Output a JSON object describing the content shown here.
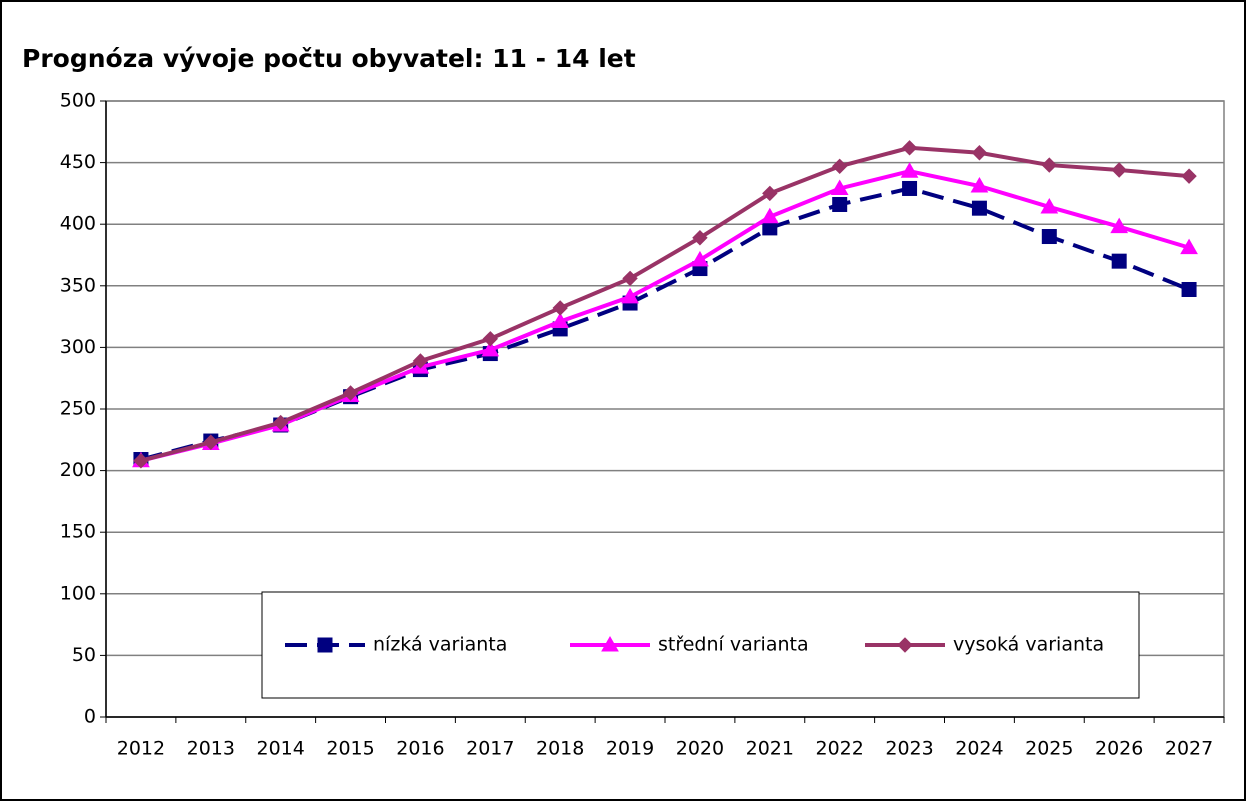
{
  "chart_data": {
    "type": "line",
    "title": "Prognóza vývoje počtu obyvatel: 11 - 14 let",
    "categories": [
      "2012",
      "2013",
      "2014",
      "2015",
      "2016",
      "2017",
      "2018",
      "2019",
      "2020",
      "2021",
      "2022",
      "2023",
      "2024",
      "2025",
      "2026",
      "2027"
    ],
    "series": [
      {
        "name": "nízká varianta",
        "color": "#000080",
        "dashed": true,
        "marker": "square",
        "values": [
          209,
          224,
          237,
          260,
          282,
          295,
          315,
          336,
          364,
          397,
          416,
          429,
          413,
          390,
          370,
          347
        ]
      },
      {
        "name": "střední varianta",
        "color": "#ff00ff",
        "dashed": false,
        "marker": "triangle",
        "values": [
          208,
          222,
          237,
          261,
          284,
          298,
          321,
          341,
          371,
          406,
          429,
          443,
          431,
          414,
          398,
          381
        ]
      },
      {
        "name": "vysoká varianta",
        "color": "#993366",
        "dashed": false,
        "marker": "diamond",
        "values": [
          208,
          223,
          239,
          263,
          289,
          307,
          332,
          356,
          389,
          425,
          447,
          462,
          458,
          448,
          444,
          439
        ]
      }
    ],
    "ylim": [
      0,
      500
    ],
    "yticks": [
      0,
      50,
      100,
      150,
      200,
      250,
      300,
      350,
      400,
      450,
      500
    ],
    "grid": true
  }
}
